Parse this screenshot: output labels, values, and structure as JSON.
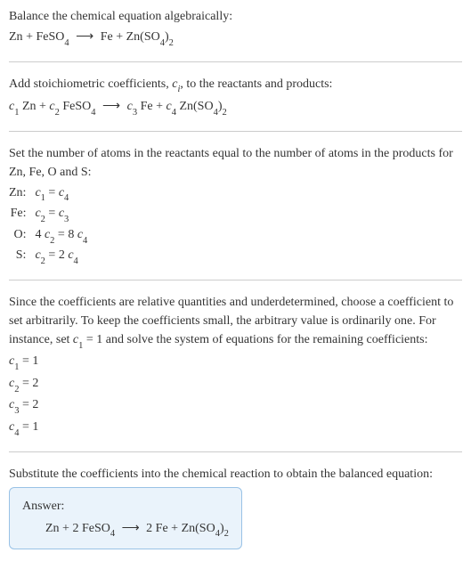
{
  "section1": {
    "line1": "Balance the chemical equation algebraically:",
    "eq": {
      "lhs1": "Zn",
      "plus": " + ",
      "lhs2": "FeSO",
      "lhs2_sub": "4",
      "arrow": "⟶",
      "rhs1": "Fe",
      "rhs2": "Zn(SO",
      "rhs2_sub1": "4",
      "rhs2_close": ")",
      "rhs2_sub2": "2"
    }
  },
  "section2": {
    "line1a": "Add stoichiometric coefficients, ",
    "ci_c": "c",
    "ci_i": "i",
    "line1b": ", to the reactants and products:",
    "eq": {
      "c1": "c",
      "s1": "1",
      "sp1": " Zn + ",
      "c2": "c",
      "s2": "2",
      "sp2": " FeSO",
      "sub4a": "4",
      "arrow": "⟶",
      "c3": "c",
      "s3": "3",
      "sp3": " Fe + ",
      "c4": "c",
      "s4": "4",
      "sp4": " Zn(SO",
      "sub4b": "4",
      "close": ")",
      "sub2": "2"
    }
  },
  "section3": {
    "line1": "Set the number of atoms in the reactants equal to the number of atoms in the products for Zn, Fe, O and S:",
    "rows": [
      {
        "el": "Zn:",
        "lhs_c": "c",
        "lhs_s": "1",
        "eq": " = ",
        "rhs_c": "c",
        "rhs_s": "4",
        "pre": "",
        "mid": ""
      },
      {
        "el": "Fe:",
        "lhs_c": "c",
        "lhs_s": "2",
        "eq": " = ",
        "rhs_c": "c",
        "rhs_s": "3",
        "pre": "",
        "mid": ""
      },
      {
        "el": "O:",
        "lhs_c": "c",
        "lhs_s": "2",
        "eq": " = 8 ",
        "rhs_c": "c",
        "rhs_s": "4",
        "pre": "4 ",
        "mid": ""
      },
      {
        "el": "S:",
        "lhs_c": "c",
        "lhs_s": "2",
        "eq": " = 2 ",
        "rhs_c": "c",
        "rhs_s": "4",
        "pre": "",
        "mid": ""
      }
    ]
  },
  "section4": {
    "para_a": "Since the coefficients are relative quantities and underdetermined, choose a coefficient to set arbitrarily. To keep the coefficients small, the arbitrary value is ordinarily one. For instance, set ",
    "c": "c",
    "s1": "1",
    "para_b": " = 1 and solve the system of equations for the remaining coefficients:",
    "coefs": [
      {
        "c": "c",
        "s": "1",
        "v": " = 1"
      },
      {
        "c": "c",
        "s": "2",
        "v": " = 2"
      },
      {
        "c": "c",
        "s": "3",
        "v": " = 2"
      },
      {
        "c": "c",
        "s": "4",
        "v": " = 1"
      }
    ]
  },
  "section5": {
    "line1": "Substitute the coefficients into the chemical reaction to obtain the balanced equation:",
    "answer_label": "Answer:",
    "eq": {
      "lhs": "Zn + 2 FeSO",
      "sub4a": "4",
      "arrow": "⟶",
      "rhs": "2 Fe + Zn(SO",
      "sub4b": "4",
      "close": ")",
      "sub2": "2"
    }
  }
}
